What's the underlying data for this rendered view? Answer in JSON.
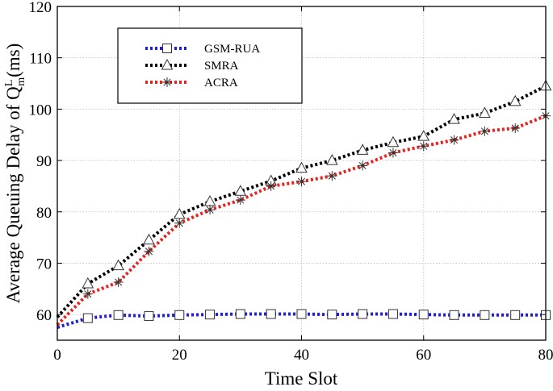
{
  "chart_data": {
    "type": "line",
    "xlabel": "Time Slot",
    "ylabel_main": "Average Queuing Delay of Q",
    "ylabel_sup": "L",
    "ylabel_sub": "m",
    "ylabel_unit": "(ms)",
    "xlim": [
      0,
      80
    ],
    "ylim": [
      55,
      120
    ],
    "xticks": [
      0,
      20,
      40,
      60,
      80
    ],
    "yticks": [
      60,
      70,
      80,
      90,
      100,
      110,
      120
    ],
    "grid": true,
    "legend_position": "top-left",
    "x": [
      0,
      5,
      10,
      15,
      20,
      25,
      30,
      35,
      40,
      45,
      50,
      55,
      60,
      65,
      70,
      75,
      80
    ],
    "series": [
      {
        "name": "GSM-RUA",
        "color": "#1f1fd6",
        "marker": "square",
        "values": [
          57.5,
          59.3,
          59.9,
          59.7,
          59.9,
          60.0,
          60.1,
          60.1,
          60.1,
          60.0,
          60.1,
          60.1,
          60.0,
          59.9,
          59.9,
          59.9,
          59.9
        ]
      },
      {
        "name": "SMRA",
        "color": "#000000",
        "marker": "triangle",
        "values": [
          59.5,
          66.0,
          69.5,
          74.5,
          79.5,
          82.0,
          84.0,
          86.0,
          88.5,
          90.0,
          92.0,
          93.5,
          94.7,
          98.0,
          99.2,
          101.5,
          104.5
        ]
      },
      {
        "name": "ACRA",
        "color": "#e8201e",
        "marker": "asterisk",
        "values": [
          58.0,
          64.0,
          66.3,
          72.3,
          77.8,
          80.4,
          82.3,
          85.0,
          85.9,
          87.0,
          89.0,
          91.5,
          92.8,
          94.0,
          95.7,
          96.3,
          98.7
        ]
      }
    ]
  }
}
